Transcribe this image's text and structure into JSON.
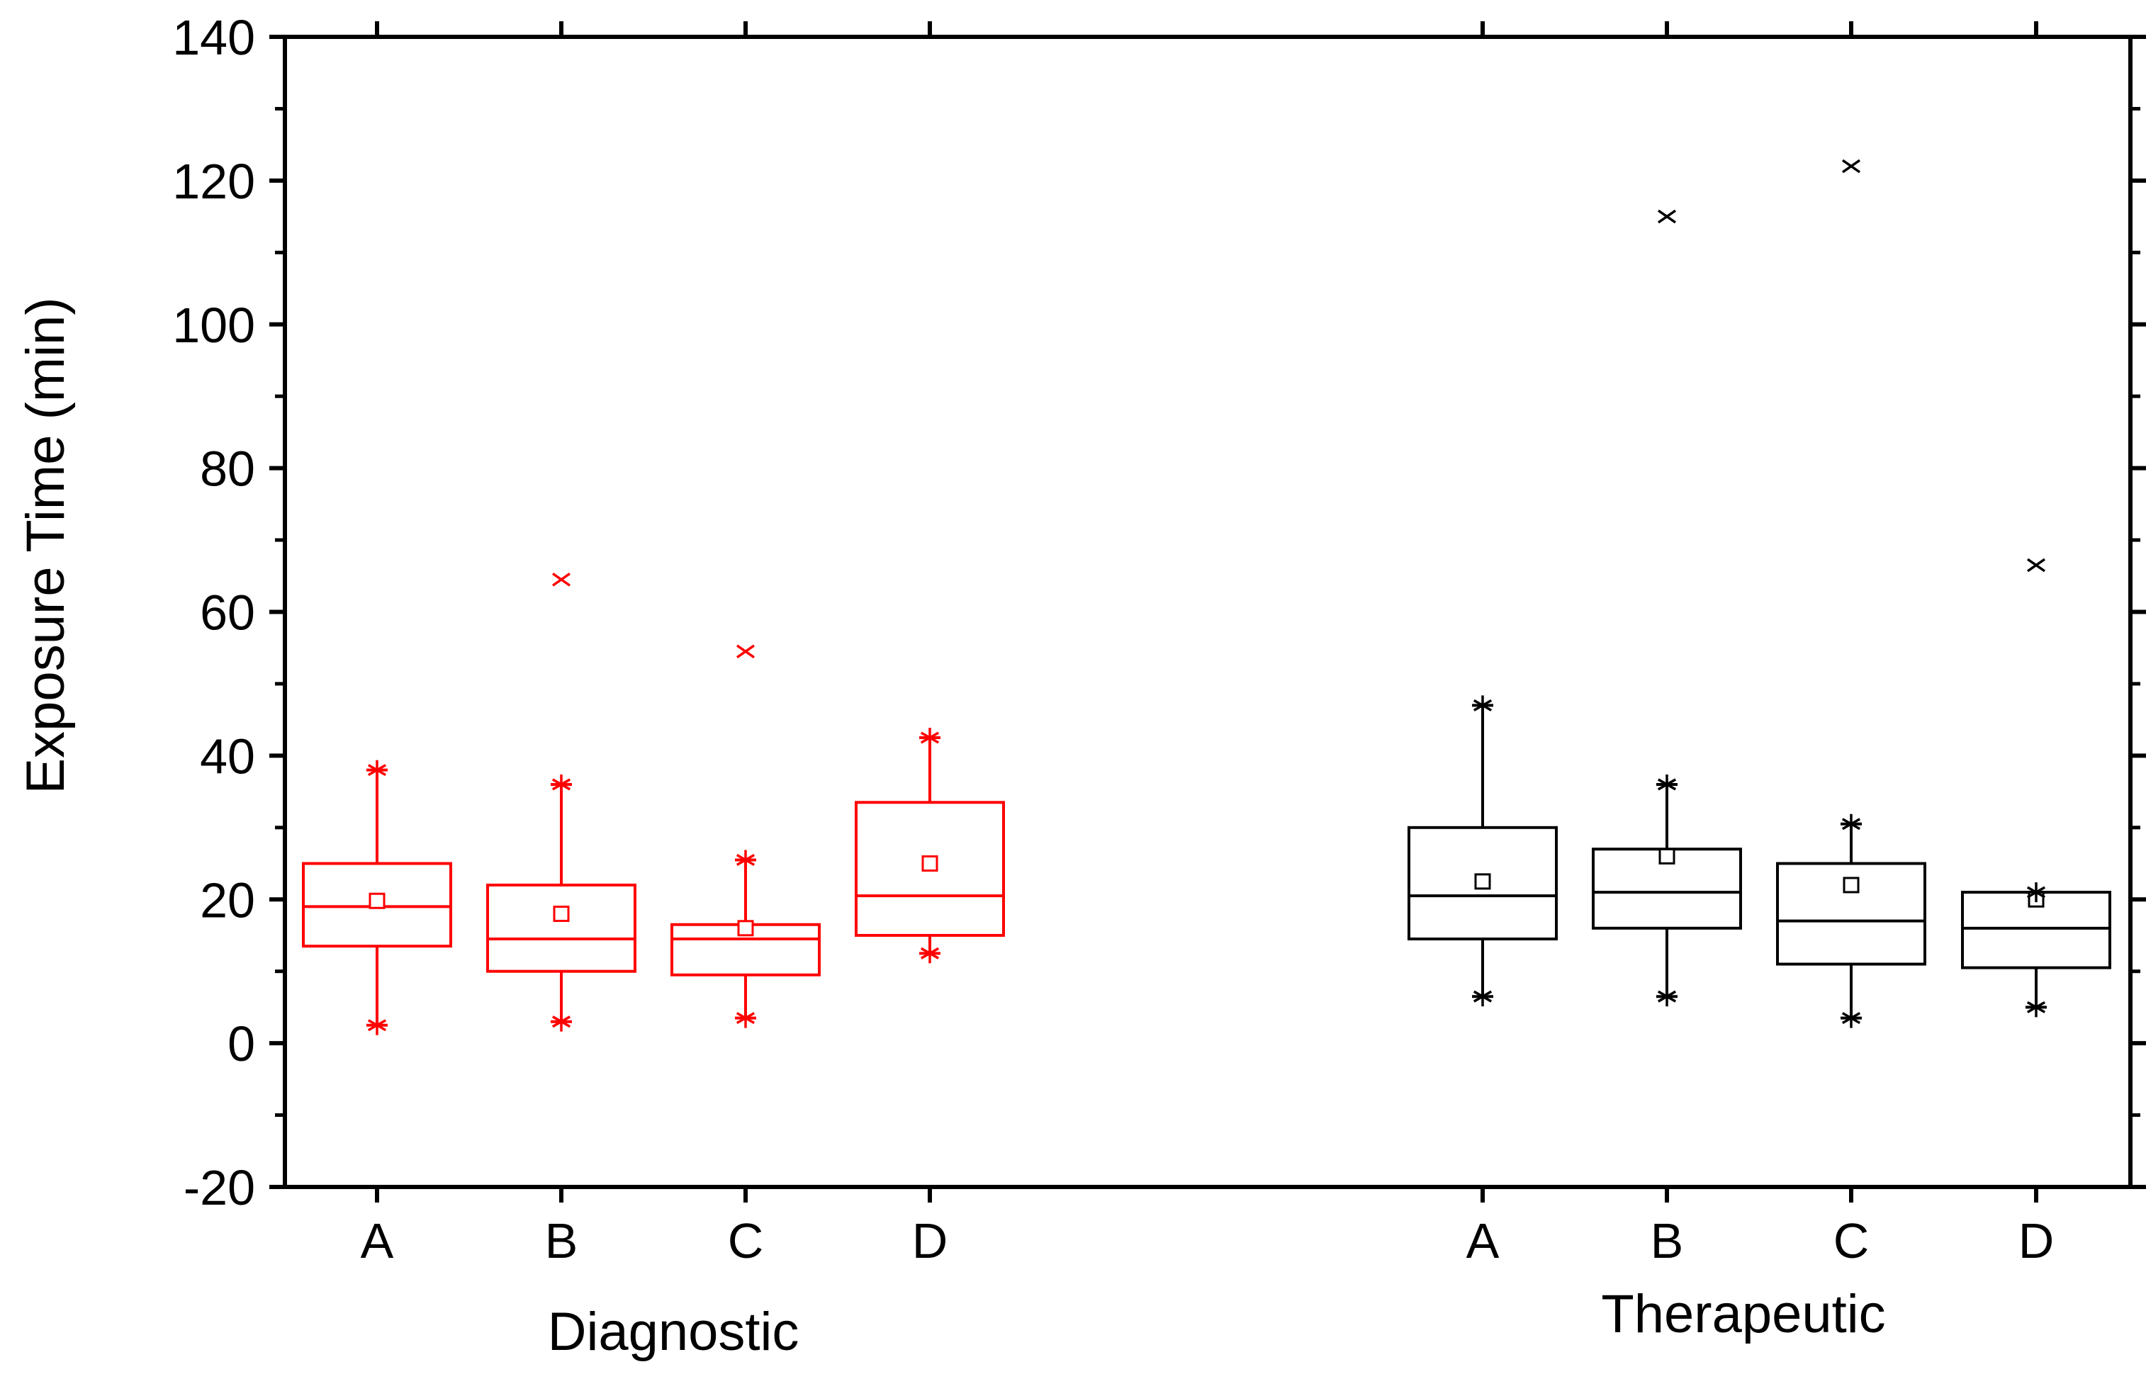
{
  "chart_data": {
    "type": "box",
    "ylabel": "Exposure Time (min)",
    "ylim": [
      -20,
      140
    ],
    "yticks": [
      -20,
      0,
      20,
      40,
      60,
      80,
      100,
      120,
      140
    ],
    "groups": [
      {
        "name": "Diagnostic",
        "color": "#ff0000",
        "boxes": [
          {
            "category": "A",
            "whisker_low": 2.5,
            "q1": 13.5,
            "median": 19,
            "q3": 25,
            "whisker_high": 38,
            "mean": 19.8,
            "outliers": []
          },
          {
            "category": "B",
            "whisker_low": 3,
            "q1": 10,
            "median": 14.5,
            "q3": 22,
            "whisker_high": 36,
            "mean": 18,
            "outliers": [
              64.5
            ]
          },
          {
            "category": "C",
            "whisker_low": 3.5,
            "q1": 9.5,
            "median": 14.5,
            "q3": 16.5,
            "whisker_high": 25.5,
            "mean": 16,
            "outliers": [
              54.5
            ]
          },
          {
            "category": "D",
            "whisker_low": 12.5,
            "q1": 15,
            "median": 20.5,
            "q3": 33.5,
            "whisker_high": 42.5,
            "mean": 25,
            "outliers": []
          }
        ]
      },
      {
        "name": "Therapeutic",
        "color": "#000000",
        "boxes": [
          {
            "category": "A",
            "whisker_low": 6.5,
            "q1": 14.5,
            "median": 20.5,
            "q3": 30,
            "whisker_high": 47,
            "mean": 22.5,
            "outliers": []
          },
          {
            "category": "B",
            "whisker_low": 6.5,
            "q1": 16,
            "median": 21,
            "q3": 27,
            "whisker_high": 36,
            "mean": 26,
            "outliers": [
              115
            ]
          },
          {
            "category": "C",
            "whisker_low": 3.5,
            "q1": 11,
            "median": 17,
            "q3": 25,
            "whisker_high": 30.5,
            "mean": 22,
            "outliers": [
              122
            ]
          },
          {
            "category": "D",
            "whisker_low": 5,
            "q1": 10.5,
            "median": 16,
            "q3": 21,
            "whisker_high": 21,
            "mean": 20,
            "outliers": [
              66.5
            ]
          }
        ]
      }
    ]
  }
}
